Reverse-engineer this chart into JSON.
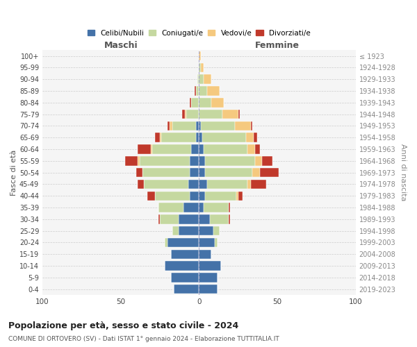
{
  "age_groups": [
    "0-4",
    "5-9",
    "10-14",
    "15-19",
    "20-24",
    "25-29",
    "30-34",
    "35-39",
    "40-44",
    "45-49",
    "50-54",
    "55-59",
    "60-64",
    "65-69",
    "70-74",
    "75-79",
    "80-84",
    "85-89",
    "90-94",
    "95-99",
    "100+"
  ],
  "birth_years": [
    "2019-2023",
    "2014-2018",
    "2009-2013",
    "2004-2008",
    "1999-2003",
    "1994-1998",
    "1989-1993",
    "1984-1988",
    "1979-1983",
    "1974-1978",
    "1969-1973",
    "1964-1968",
    "1959-1963",
    "1954-1958",
    "1949-1953",
    "1944-1948",
    "1939-1943",
    "1934-1938",
    "1929-1933",
    "1924-1928",
    "≤ 1923"
  ],
  "colors": {
    "celibi": "#4472a8",
    "coniugati": "#c5d8a0",
    "vedovi": "#f5c97f",
    "divorziati": "#c0392b"
  },
  "males": {
    "celibi": [
      16,
      18,
      22,
      18,
      20,
      13,
      13,
      10,
      6,
      7,
      6,
      6,
      5,
      2,
      2,
      0,
      0,
      0,
      0,
      0,
      0
    ],
    "coniugati": [
      0,
      0,
      0,
      0,
      2,
      4,
      12,
      16,
      22,
      28,
      30,
      32,
      25,
      22,
      15,
      8,
      5,
      2,
      1,
      0,
      0
    ],
    "vedovi": [
      0,
      0,
      0,
      0,
      0,
      0,
      0,
      0,
      0,
      0,
      0,
      1,
      1,
      1,
      2,
      1,
      0,
      0,
      0,
      0,
      0
    ],
    "divorziati": [
      0,
      0,
      0,
      0,
      0,
      0,
      1,
      0,
      5,
      4,
      4,
      8,
      8,
      3,
      1,
      2,
      1,
      1,
      0,
      0,
      0
    ]
  },
  "females": {
    "celibi": [
      12,
      12,
      14,
      8,
      10,
      9,
      7,
      3,
      4,
      5,
      4,
      4,
      3,
      2,
      1,
      0,
      0,
      0,
      0,
      0,
      0
    ],
    "coniugati": [
      0,
      0,
      0,
      0,
      2,
      4,
      12,
      16,
      20,
      26,
      30,
      32,
      28,
      28,
      22,
      15,
      8,
      5,
      3,
      1,
      0
    ],
    "vedovi": [
      0,
      0,
      0,
      0,
      0,
      0,
      0,
      0,
      1,
      2,
      5,
      4,
      5,
      5,
      10,
      10,
      8,
      8,
      5,
      2,
      1
    ],
    "divorziati": [
      0,
      0,
      0,
      0,
      0,
      0,
      1,
      1,
      3,
      10,
      12,
      7,
      3,
      2,
      1,
      1,
      0,
      0,
      0,
      0,
      0
    ]
  },
  "xlim": 100,
  "title": "Popolazione per età, sesso e stato civile - 2024",
  "subtitle": "COMUNE DI ORTOVERO (SV) - Dati ISTAT 1° gennaio 2024 - Elaborazione TUTTITALIA.IT",
  "xlabel_left": "Maschi",
  "xlabel_right": "Femmine",
  "ylabel_left": "Fasce di età",
  "ylabel_right": "Anni di nascita",
  "legend_labels": [
    "Celibi/Nubili",
    "Coniugati/e",
    "Vedovi/e",
    "Divorziati/e"
  ],
  "bg_color": "#ffffff",
  "plot_bg_color": "#f5f5f5",
  "grid_color": "#cccccc"
}
